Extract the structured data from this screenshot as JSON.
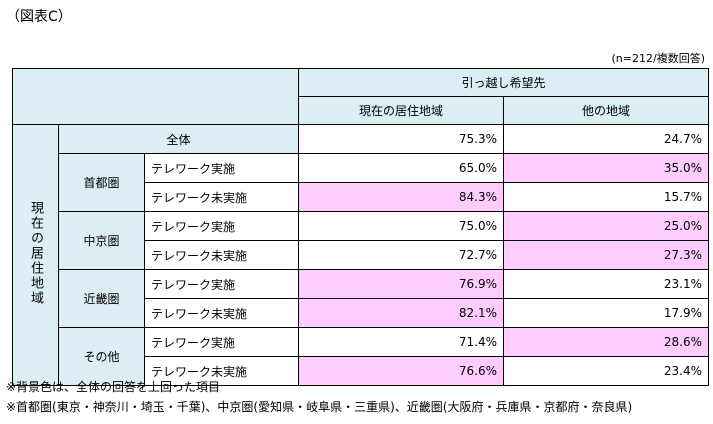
{
  "title": "（図表C）",
  "note": "(n=212/複数回答)",
  "header": {
    "group": "引っ越し希望先",
    "col1": "現在の居住地域",
    "col2": "他の地域"
  },
  "side_label": "現在の居住地域",
  "total": {
    "label": "全体",
    "v1": "75.3%",
    "v2": "24.7%"
  },
  "regions": [
    {
      "name": "首都圏",
      "rows": [
        {
          "label": "テレワーク実施",
          "v1": "65.0%",
          "v2": "35.0%",
          "hi1": false,
          "hi2": true
        },
        {
          "label": "テレワーク未実施",
          "v1": "84.3%",
          "v2": "15.7%",
          "hi1": true,
          "hi2": false
        }
      ]
    },
    {
      "name": "中京圏",
      "rows": [
        {
          "label": "テレワーク実施",
          "v1": "75.0%",
          "v2": "25.0%",
          "hi1": false,
          "hi2": true
        },
        {
          "label": "テレワーク未実施",
          "v1": "72.7%",
          "v2": "27.3%",
          "hi1": false,
          "hi2": true
        }
      ]
    },
    {
      "name": "近畿圏",
      "rows": [
        {
          "label": "テレワーク実施",
          "v1": "76.9%",
          "v2": "23.1%",
          "hi1": true,
          "hi2": false
        },
        {
          "label": "テレワーク未実施",
          "v1": "82.1%",
          "v2": "17.9%",
          "hi1": true,
          "hi2": false
        }
      ]
    },
    {
      "name": "その他",
      "rows": [
        {
          "label": "テレワーク実施",
          "v1": "71.4%",
          "v2": "28.6%",
          "hi1": false,
          "hi2": true
        },
        {
          "label": "テレワーク未実施",
          "v1": "76.6%",
          "v2": "23.4%",
          "hi1": true,
          "hi2": false
        }
      ]
    }
  ],
  "footnotes": [
    "※背景色は、全体の回答を上回った項目",
    "※首都圏(東京・神奈川・埼玉・千葉)、中京圏(愛知県・岐阜県・三重県)、近畿圏(大阪府・兵庫県・京都府・奈良県)"
  ],
  "colors": {
    "header_bg": "#dbeef4",
    "highlight": "#ffccff"
  }
}
